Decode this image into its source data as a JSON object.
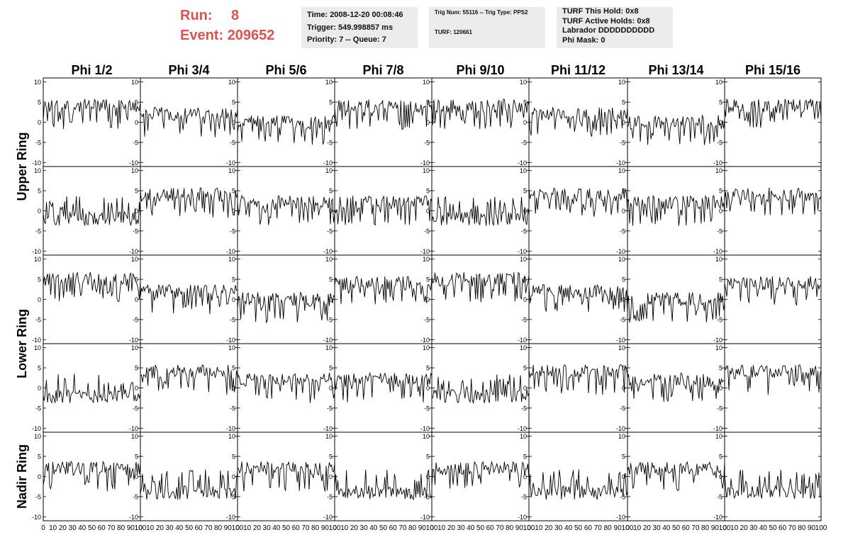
{
  "run": {
    "run_label": "Run:",
    "run_value": "8",
    "event_label": "Event:",
    "event_value": "209652"
  },
  "info": {
    "time": "Time: 2008-12-20 00:08:46",
    "trigger": "Trigger: 549.998857 ms",
    "priority": "Priority: 7 -- Queue: 7",
    "trig": "Trig Num: 55116 -- Trig Type: PPS2",
    "turf": "TURF: 120661",
    "turf_hold": "TURF This Hold: 0x8",
    "turf_active": "TURF Active Holds: 0x8",
    "labrador": "Labrador DDDDDDDDDD",
    "phi_mask": "Phi Mask: 0"
  },
  "chart_data": {
    "type": "line",
    "columns": [
      "Phi 1/2",
      "Phi 3/4",
      "Phi 5/6",
      "Phi 7/8",
      "Phi 9/10",
      "Phi 11/12",
      "Phi 13/14",
      "Phi 15/16"
    ],
    "ring_labels": [
      "Upper Ring",
      "Lower Ring",
      "Nadir Ring"
    ],
    "ylim": [
      -11,
      11
    ],
    "xlim": [
      0,
      100
    ],
    "yticks": [
      10,
      5,
      0,
      -5,
      -10
    ],
    "xticks": [
      "0",
      "10",
      "20",
      "30",
      "40",
      "50",
      "60",
      "70",
      "80",
      "90",
      "100"
    ],
    "rows_per_ring": 2,
    "baseline_levels": [
      [
        4,
        2,
        0,
        4,
        4,
        2,
        0,
        4
      ],
      [
        -2,
        4,
        2,
        2,
        -2,
        4,
        2,
        4
      ],
      [
        5,
        2,
        0,
        4,
        5,
        2,
        0,
        4
      ],
      [
        -2,
        4,
        2,
        2,
        -2,
        4,
        2,
        4
      ],
      [
        2,
        -4,
        2,
        -4,
        2,
        -4,
        2,
        -4
      ]
    ],
    "series_points": 92
  }
}
